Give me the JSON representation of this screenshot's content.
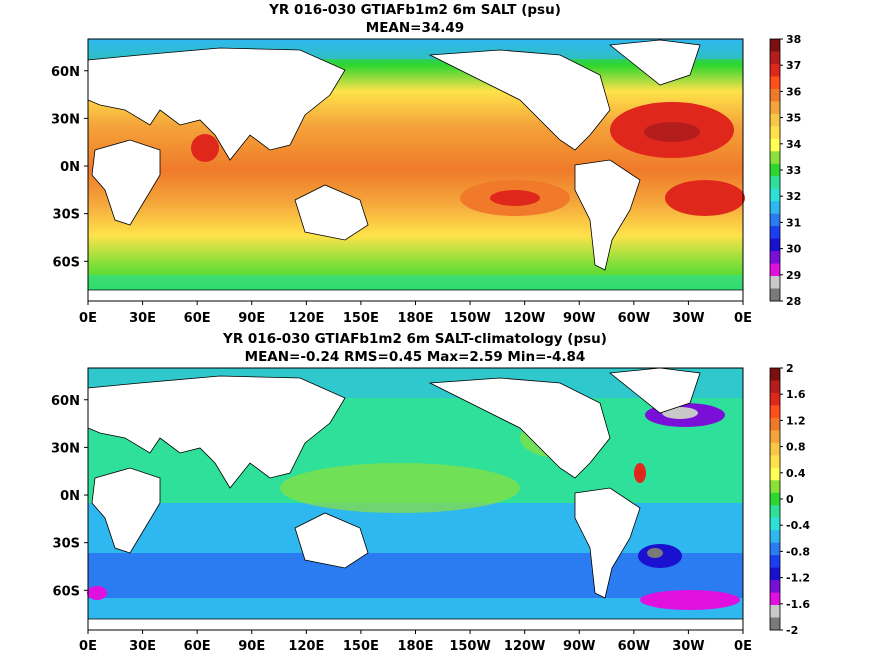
{
  "chart_data": [
    {
      "type": "heatmap",
      "title": "YR 016-030 GTIAFb1m2 6m SALT (psu)",
      "subtitle": "MEAN=34.49",
      "x_ticks": [
        "0E",
        "30E",
        "60E",
        "90E",
        "120E",
        "150E",
        "180E",
        "150W",
        "120W",
        "90W",
        "60W",
        "30W",
        "0E"
      ],
      "y_ticks": [
        "60N",
        "30N",
        "0N",
        "30S",
        "60S"
      ],
      "colorbar_labels": [
        "38",
        "37",
        "36",
        "35",
        "34",
        "33",
        "32",
        "31",
        "30",
        "29",
        "28"
      ],
      "colors": [
        "#7a1010",
        "#b51d1d",
        "#e0271b",
        "#ff4f1a",
        "#f07a2a",
        "#f4a43a",
        "#f7c846",
        "#ffe24a",
        "#ffff55",
        "#8ce03a",
        "#2fd62f",
        "#2fe09a",
        "#2fe0d8",
        "#2fb8f0",
        "#2a7cf0",
        "#1a3ff0",
        "#1a10d0",
        "#7a10d8",
        "#e010e0",
        "#c8c8c8",
        "#7a7a7a"
      ]
    },
    {
      "type": "heatmap",
      "title": "YR 016-030 GTIAFb1m2 6m SALT-climatology (psu)",
      "subtitle": "MEAN=-0.24   RMS=0.45   Max=2.59   Min=-4.84",
      "x_ticks": [
        "0E",
        "30E",
        "60E",
        "90E",
        "120E",
        "150E",
        "180E",
        "150W",
        "120W",
        "90W",
        "60W",
        "30W",
        "0E"
      ],
      "y_ticks": [
        "60N",
        "30N",
        "0N",
        "30S",
        "60S"
      ],
      "colorbar_labels": [
        "2",
        "1.6",
        "1.2",
        "0.8",
        "0.4",
        "0",
        "-0.4",
        "-0.8",
        "-1.2",
        "-1.6",
        "-2"
      ],
      "colors": [
        "#7a1010",
        "#b51d1d",
        "#e0271b",
        "#ff4f1a",
        "#f07a2a",
        "#f4a43a",
        "#f7c846",
        "#ffe24a",
        "#ffff55",
        "#8ce03a",
        "#2fd62f",
        "#2fe09a",
        "#2fe0d8",
        "#2fb8f0",
        "#2a7cf0",
        "#1a3ff0",
        "#1a10d0",
        "#7a10d8",
        "#e010e0",
        "#c8c8c8",
        "#7a7a7a"
      ]
    }
  ]
}
